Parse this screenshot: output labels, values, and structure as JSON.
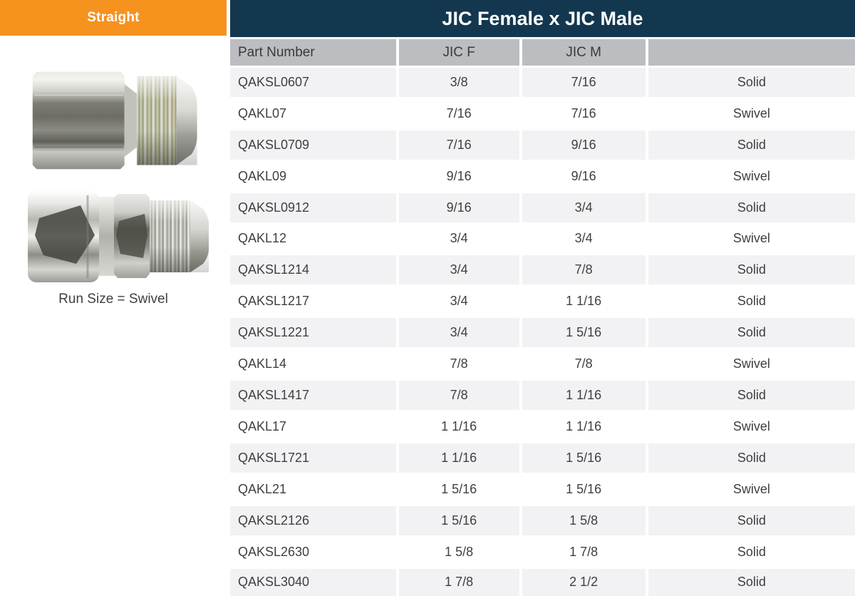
{
  "left_panel": {
    "category_label": "Straight",
    "caption": "Run Size = Swivel",
    "images": [
      {
        "name": "solid-fitting-image",
        "description": "JIC female x JIC male solid straight fitting"
      },
      {
        "name": "swivel-fitting-image",
        "description": "JIC female swivel x JIC male straight fitting"
      }
    ]
  },
  "table": {
    "title": "JIC Female x JIC Male",
    "columns": [
      "Part Number",
      "JIC F",
      "JIC M",
      ""
    ],
    "rows": [
      [
        "QAKSL0607",
        "3/8",
        "7/16",
        "Solid"
      ],
      [
        "QAKL07",
        "7/16",
        "7/16",
        "Swivel"
      ],
      [
        "QAKSL0709",
        "7/16",
        "9/16",
        "Solid"
      ],
      [
        "QAKL09",
        "9/16",
        "9/16",
        "Swivel"
      ],
      [
        "QAKSL0912",
        "9/16",
        "3/4",
        "Solid"
      ],
      [
        "QAKL12",
        "3/4",
        "3/4",
        "Swivel"
      ],
      [
        "QAKSL1214",
        "3/4",
        "7/8",
        "Solid"
      ],
      [
        "QAKSL1217",
        "3/4",
        "1 1/16",
        "Solid"
      ],
      [
        "QAKSL1221",
        "3/4",
        "1 5/16",
        "Solid"
      ],
      [
        "QAKL14",
        "7/8",
        "7/8",
        "Swivel"
      ],
      [
        "QAKSL1417",
        "7/8",
        "1 1/16",
        "Solid"
      ],
      [
        "QAKL17",
        "1 1/16",
        "1 1/16",
        "Swivel"
      ],
      [
        "QAKSL1721",
        "1 1/16",
        "1 5/16",
        "Solid"
      ],
      [
        "QAKL21",
        "1 5/16",
        "1 5/16",
        "Swivel"
      ],
      [
        "QAKSL2126",
        "1 5/16",
        "1 5/8",
        "Solid"
      ],
      [
        "QAKSL2630",
        "1 5/8",
        "1 7/8",
        "Solid"
      ],
      [
        "QAKSL3040",
        "1 7/8",
        "2 1/2",
        "Solid"
      ]
    ]
  },
  "colors": {
    "accent_orange": "#F6921E",
    "title_navy": "#13374F",
    "header_gray": "#BCBDC1",
    "row_alt_gray": "#F2F2F4",
    "text_dark": "#3F3F3F",
    "divider_white": "#FFFFFF"
  }
}
